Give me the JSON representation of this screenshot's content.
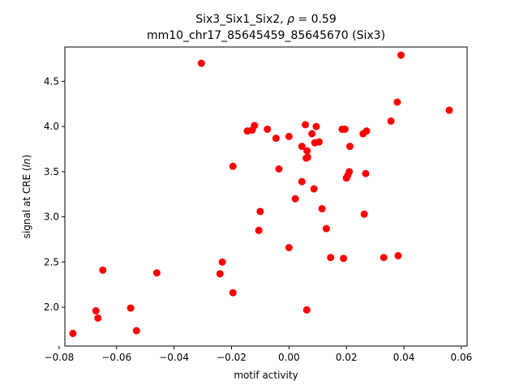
{
  "chart_data": {
    "type": "scatter",
    "title_line1_prefix": "Six3_Six1_Six2, ",
    "title_line1_rho": "ρ",
    "title_line1_value": " = 0.59",
    "title_line2": "mm10_chr17_85645459_85645670 (Six3)",
    "xlabel": "motif activity",
    "ylabel_prefix": "signal at CRE (",
    "ylabel_italic": "ln",
    "ylabel_suffix": ")",
    "xlim": [
      -0.078,
      0.062
    ],
    "ylim": [
      1.57,
      4.88
    ],
    "xticks": [
      -0.08,
      -0.06,
      -0.04,
      -0.02,
      0.0,
      0.02,
      0.04,
      0.06
    ],
    "xtick_labels": [
      "−0.08",
      "−0.06",
      "−0.04",
      "−0.02",
      "0.00",
      "0.02",
      "0.04",
      "0.06"
    ],
    "yticks": [
      2.0,
      2.5,
      3.0,
      3.5,
      4.0,
      4.5
    ],
    "ytick_labels": [
      "2.0",
      "2.5",
      "3.0",
      "3.5",
      "4.0",
      "4.5"
    ],
    "marker_color": "#ff0000",
    "grid": false,
    "points": [
      [
        -0.0752,
        1.71
      ],
      [
        -0.0672,
        1.96
      ],
      [
        -0.0665,
        1.88
      ],
      [
        -0.0648,
        2.41
      ],
      [
        -0.0551,
        1.99
      ],
      [
        -0.0531,
        1.74
      ],
      [
        -0.046,
        2.38
      ],
      [
        -0.0305,
        4.7
      ],
      [
        -0.024,
        2.37
      ],
      [
        -0.0232,
        2.5
      ],
      [
        -0.0195,
        2.16
      ],
      [
        -0.0195,
        3.56
      ],
      [
        -0.0145,
        3.95
      ],
      [
        -0.0128,
        3.96
      ],
      [
        -0.012,
        4.01
      ],
      [
        -0.0105,
        2.85
      ],
      [
        -0.01,
        3.06
      ],
      [
        -0.0075,
        3.97
      ],
      [
        -0.0045,
        3.87
      ],
      [
        -0.0035,
        3.53
      ],
      [
        0.0,
        2.66
      ],
      [
        0.0,
        3.89
      ],
      [
        0.0022,
        3.2
      ],
      [
        0.0045,
        3.78
      ],
      [
        0.0045,
        3.39
      ],
      [
        0.0057,
        4.02
      ],
      [
        0.006,
        3.65
      ],
      [
        0.0062,
        1.97
      ],
      [
        0.0063,
        3.73
      ],
      [
        0.0065,
        3.66
      ],
      [
        0.008,
        3.92
      ],
      [
        0.0087,
        3.31
      ],
      [
        0.009,
        3.82
      ],
      [
        0.0095,
        4.0
      ],
      [
        0.0105,
        3.83
      ],
      [
        0.0115,
        3.09
      ],
      [
        0.013,
        2.87
      ],
      [
        0.0145,
        2.55
      ],
      [
        0.0185,
        3.97
      ],
      [
        0.019,
        2.54
      ],
      [
        0.0195,
        3.97
      ],
      [
        0.02,
        3.43
      ],
      [
        0.0205,
        3.46
      ],
      [
        0.021,
        3.5
      ],
      [
        0.0212,
        3.78
      ],
      [
        0.0258,
        3.92
      ],
      [
        0.0262,
        3.03
      ],
      [
        0.0267,
        3.48
      ],
      [
        0.027,
        3.95
      ],
      [
        0.033,
        2.55
      ],
      [
        0.0355,
        4.06
      ],
      [
        0.0377,
        4.27
      ],
      [
        0.038,
        2.57
      ],
      [
        0.039,
        4.79
      ],
      [
        0.0558,
        4.18
      ]
    ]
  }
}
